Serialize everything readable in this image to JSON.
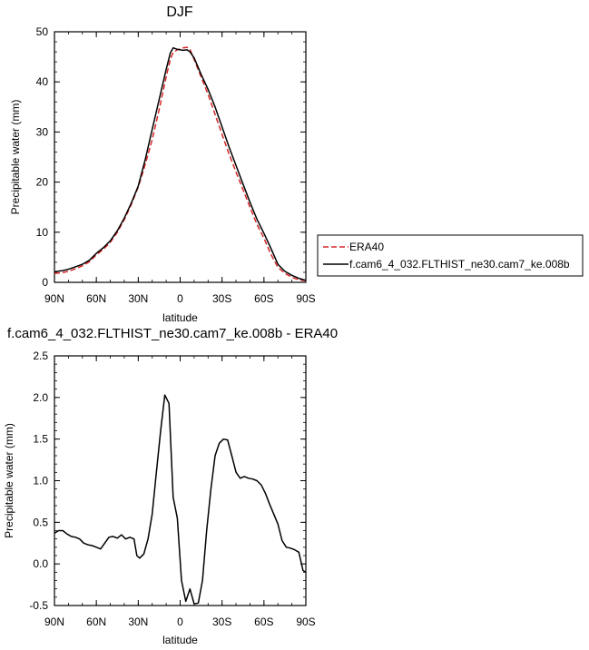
{
  "chart_data": [
    {
      "type": "line",
      "title": "DJF",
      "xlabel": "latitude",
      "ylabel": "Precipitable water (mm)",
      "xlim": [
        90,
        -90
      ],
      "ylim": [
        0,
        50
      ],
      "xticks": [
        {
          "value": 90,
          "label": "90N"
        },
        {
          "value": 60,
          "label": "60N"
        },
        {
          "value": 30,
          "label": "30N"
        },
        {
          "value": 0,
          "label": "0"
        },
        {
          "value": -30,
          "label": "30S"
        },
        {
          "value": -60,
          "label": "60S"
        },
        {
          "value": -90,
          "label": "90S"
        }
      ],
      "yticks": [
        {
          "value": 0,
          "label": "0"
        },
        {
          "value": 10,
          "label": "10"
        },
        {
          "value": 20,
          "label": "20"
        },
        {
          "value": 30,
          "label": "30"
        },
        {
          "value": 40,
          "label": "40"
        },
        {
          "value": 50,
          "label": "50"
        }
      ],
      "legend": "right",
      "series": [
        {
          "name": "ERA40",
          "color": "#d62728",
          "dash": "dashed",
          "x": [
            90,
            85,
            80,
            75,
            70,
            65,
            60,
            55,
            50,
            45,
            40,
            35,
            30,
            25,
            20,
            15,
            10,
            7,
            5,
            2,
            0,
            -2,
            -5,
            -7,
            -10,
            -15,
            -20,
            -25,
            -30,
            -35,
            -40,
            -45,
            -50,
            -55,
            -60,
            -65,
            -70,
            -75,
            -80,
            -85,
            -90
          ],
          "y": [
            1.8,
            1.9,
            2.2,
            2.7,
            3.3,
            4.1,
            5.5,
            6.6,
            8.0,
            10.0,
            12.5,
            15.5,
            19.0,
            23.5,
            28.5,
            34.5,
            41.0,
            44.5,
            45.9,
            46.4,
            46.6,
            46.8,
            46.9,
            46.5,
            44.5,
            41.0,
            37.5,
            33.5,
            29.5,
            25.6,
            22.0,
            18.5,
            15.0,
            11.6,
            8.8,
            5.6,
            3.0,
            1.8,
            1.0,
            0.5,
            0.3
          ]
        },
        {
          "name": "f.cam6_4_032.FLTHIST_ne30.cam7_ke.008b",
          "color": "#000000",
          "dash": "solid",
          "x": [
            90,
            85,
            80,
            75,
            70,
            65,
            60,
            55,
            50,
            45,
            40,
            35,
            30,
            25,
            20,
            15,
            10,
            7,
            5,
            2,
            0,
            -2,
            -5,
            -7,
            -10,
            -15,
            -20,
            -25,
            -30,
            -35,
            -40,
            -45,
            -50,
            -55,
            -60,
            -65,
            -70,
            -75,
            -80,
            -85,
            -90
          ],
          "y": [
            2.1,
            2.3,
            2.6,
            3.1,
            3.6,
            4.4,
            5.8,
            6.9,
            8.3,
            10.3,
            12.8,
            15.8,
            19.2,
            24.5,
            30.5,
            36.5,
            42.5,
            45.8,
            46.8,
            46.5,
            46.4,
            46.3,
            46.4,
            46.0,
            44.8,
            41.5,
            38.5,
            35.0,
            31.0,
            27.0,
            23.3,
            19.6,
            16.0,
            12.6,
            9.8,
            6.8,
            3.6,
            2.2,
            1.4,
            0.8,
            0.4
          ]
        }
      ]
    },
    {
      "type": "line",
      "title": "f.cam6_4_032.FLTHIST_ne30.cam7_ke.008b - ERA40",
      "xlabel": "latitude",
      "ylabel": "Precipitable water (mm)",
      "xlim": [
        90,
        -90
      ],
      "ylim": [
        -0.5,
        2.5
      ],
      "xticks": [
        {
          "value": 90,
          "label": "90N"
        },
        {
          "value": 60,
          "label": "60N"
        },
        {
          "value": 30,
          "label": "30N"
        },
        {
          "value": 0,
          "label": "0"
        },
        {
          "value": -30,
          "label": "30S"
        },
        {
          "value": -60,
          "label": "60S"
        },
        {
          "value": -90,
          "label": "90S"
        }
      ],
      "yticks": [
        {
          "value": -0.5,
          "label": "-0.5"
        },
        {
          "value": 0,
          "label": "0.0"
        },
        {
          "value": 0.5,
          "label": "0.5"
        },
        {
          "value": 1.0,
          "label": "1.0"
        },
        {
          "value": 1.5,
          "label": "1.5"
        },
        {
          "value": 2.0,
          "label": "2.0"
        },
        {
          "value": 2.5,
          "label": "2.5"
        }
      ],
      "series": [
        {
          "color": "#000000",
          "x": [
            90,
            87,
            84,
            81,
            78,
            75,
            72,
            69,
            66,
            63,
            60,
            57,
            54,
            51,
            48,
            45,
            42,
            39,
            36,
            33,
            31,
            29,
            26,
            23,
            20,
            17,
            14,
            11,
            8,
            5,
            2,
            -1,
            -4,
            -7,
            -10,
            -13,
            -16,
            -19,
            -22,
            -25,
            -28,
            -31,
            -34,
            -37,
            -40,
            -43,
            -46,
            -49,
            -52,
            -55,
            -58,
            -61,
            -64,
            -67,
            -70,
            -73,
            -76,
            -79,
            -82,
            -85,
            -88,
            -90
          ],
          "y": [
            0.37,
            0.4,
            0.4,
            0.36,
            0.33,
            0.32,
            0.3,
            0.25,
            0.23,
            0.22,
            0.2,
            0.18,
            0.25,
            0.32,
            0.33,
            0.31,
            0.35,
            0.3,
            0.32,
            0.3,
            0.1,
            0.07,
            0.12,
            0.3,
            0.6,
            1.1,
            1.6,
            2.03,
            1.93,
            0.8,
            0.55,
            -0.2,
            -0.45,
            -0.3,
            -0.48,
            -0.47,
            -0.2,
            0.4,
            0.9,
            1.3,
            1.45,
            1.5,
            1.49,
            1.3,
            1.1,
            1.03,
            1.05,
            1.03,
            1.02,
            1.0,
            0.95,
            0.85,
            0.72,
            0.6,
            0.48,
            0.28,
            0.2,
            0.19,
            0.17,
            0.14,
            -0.08,
            -0.1
          ]
        }
      ]
    }
  ]
}
